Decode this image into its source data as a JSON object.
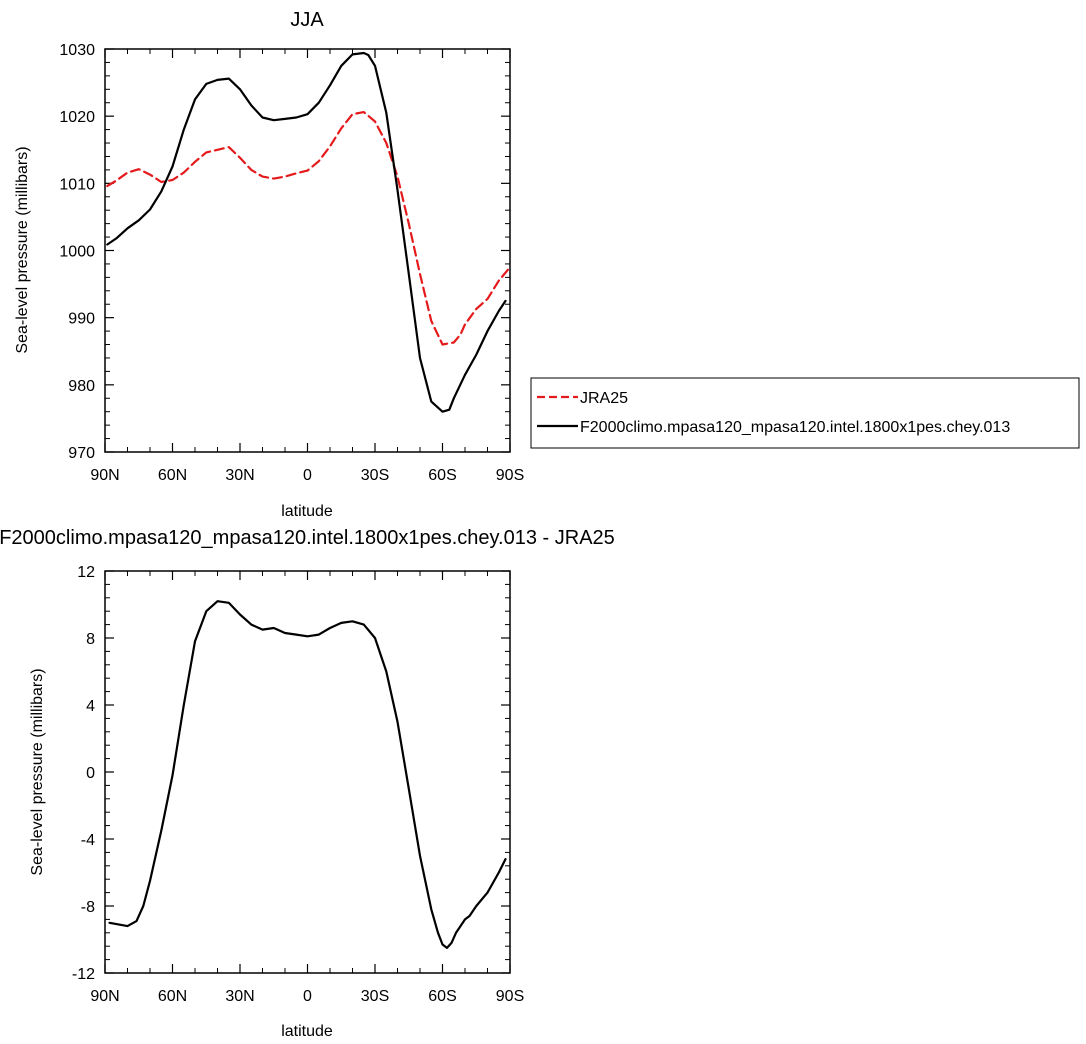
{
  "chart_data": [
    {
      "type": "line",
      "title": "JJA",
      "xlabel": "latitude",
      "ylabel": "Sea-level pressure (millibars)",
      "xlim": [
        90,
        -90
      ],
      "ylim": [
        970,
        1030
      ],
      "xticks": [
        {
          "value": 90,
          "label": "90N"
        },
        {
          "value": 60,
          "label": "60N"
        },
        {
          "value": 30,
          "label": "30N"
        },
        {
          "value": 0,
          "label": "0"
        },
        {
          "value": -30,
          "label": "30S"
        },
        {
          "value": -60,
          "label": "60S"
        },
        {
          "value": -90,
          "label": "90S"
        }
      ],
      "yticks": [
        {
          "value": 1030,
          "label": "1030"
        },
        {
          "value": 1020,
          "label": "1020"
        },
        {
          "value": 1010,
          "label": "1010"
        },
        {
          "value": 1000,
          "label": "1000"
        },
        {
          "value": 990,
          "label": "990"
        },
        {
          "value": 980,
          "label": "980"
        },
        {
          "value": 970,
          "label": "970"
        }
      ],
      "legend_position": "right",
      "series": [
        {
          "name": "JRA25",
          "color": "#e41a1c",
          "dash": "dashed",
          "x": [
            89,
            85,
            80,
            75,
            70,
            65,
            60,
            55,
            50,
            45,
            40,
            35,
            30,
            25,
            20,
            15,
            10,
            5,
            0,
            -5,
            -10,
            -15,
            -20,
            -25,
            -30,
            -35,
            -40,
            -45,
            -50,
            -55,
            -60,
            -65,
            -68,
            -70,
            -75,
            -80,
            -85,
            -90
          ],
          "y": [
            1009.6,
            1010.4,
            1011.6,
            1012.1,
            1011.3,
            1010.2,
            1010.5,
            1011.6,
            1013.2,
            1014.6,
            1015.0,
            1015.4,
            1013.8,
            1012.0,
            1011.0,
            1010.7,
            1011.0,
            1011.5,
            1011.9,
            1013.3,
            1015.5,
            1018.2,
            1020.3,
            1020.6,
            1019.2,
            1016.0,
            1011.0,
            1004.0,
            996.5,
            989.5,
            986.0,
            986.3,
            987.5,
            989.0,
            991.3,
            992.8,
            995.5,
            997.5
          ]
        },
        {
          "name": "F2000climo.mpasa120_mpasa120.intel.1800x1pes.chey.013",
          "color": "#000000",
          "dash": "solid",
          "x": [
            89,
            85,
            80,
            75,
            70,
            65,
            60,
            55,
            50,
            45,
            40,
            35,
            30,
            25,
            20,
            15,
            10,
            5,
            0,
            -5,
            -10,
            -15,
            -20,
            -25,
            -27,
            -30,
            -35,
            -40,
            -45,
            -50,
            -55,
            -60,
            -63,
            -65,
            -70,
            -75,
            -80,
            -85,
            -88
          ],
          "y": [
            1000.9,
            1001.8,
            1003.3,
            1004.5,
            1006.1,
            1008.8,
            1012.5,
            1018.0,
            1022.5,
            1024.8,
            1025.4,
            1025.6,
            1024.0,
            1021.6,
            1019.8,
            1019.4,
            1019.6,
            1019.8,
            1020.3,
            1022.0,
            1024.6,
            1027.5,
            1029.2,
            1029.4,
            1029.1,
            1027.5,
            1020.5,
            1009.0,
            996.5,
            984.0,
            977.5,
            976.0,
            976.3,
            978.0,
            981.5,
            984.5,
            988.0,
            991.0,
            992.5
          ]
        }
      ]
    },
    {
      "type": "line",
      "title": "F2000climo.mpasa120_mpasa120.intel.1800x1pes.chey.013 - JRA25",
      "xlabel": "latitude",
      "ylabel": "Sea-level pressure (millibars)",
      "xlim": [
        90,
        -90
      ],
      "ylim": [
        -12,
        12
      ],
      "xticks": [
        {
          "value": 90,
          "label": "90N"
        },
        {
          "value": 60,
          "label": "60N"
        },
        {
          "value": 30,
          "label": "30N"
        },
        {
          "value": 0,
          "label": "0"
        },
        {
          "value": -30,
          "label": "30S"
        },
        {
          "value": -60,
          "label": "60S"
        },
        {
          "value": -90,
          "label": "90S"
        }
      ],
      "yticks": [
        {
          "value": 12,
          "label": "12"
        },
        {
          "value": 8,
          "label": "8"
        },
        {
          "value": 4,
          "label": "4"
        },
        {
          "value": 0,
          "label": "0"
        },
        {
          "value": -4,
          "label": "-4"
        },
        {
          "value": -8,
          "label": "-8"
        },
        {
          "value": -12,
          "label": "-12"
        }
      ],
      "series": [
        {
          "color": "#000000",
          "dash": "solid",
          "x": [
            88,
            84,
            80,
            76,
            73,
            70,
            65,
            60,
            55,
            50,
            45,
            40,
            35,
            30,
            25,
            20,
            15,
            10,
            5,
            0,
            -5,
            -10,
            -15,
            -20,
            -25,
            -30,
            -35,
            -40,
            -45,
            -50,
            -55,
            -58,
            -60,
            -62,
            -64,
            -66,
            -68,
            -70,
            -72,
            -75,
            -80,
            -85,
            -88
          ],
          "y": [
            -9.0,
            -9.1,
            -9.2,
            -8.9,
            -8.0,
            -6.5,
            -3.5,
            -0.2,
            4.0,
            7.8,
            9.6,
            10.2,
            10.1,
            9.4,
            8.8,
            8.5,
            8.6,
            8.3,
            8.2,
            8.1,
            8.2,
            8.6,
            8.9,
            9.0,
            8.8,
            8.0,
            6.0,
            3.0,
            -1.0,
            -5.0,
            -8.2,
            -9.6,
            -10.3,
            -10.5,
            -10.2,
            -9.6,
            -9.2,
            -8.8,
            -8.6,
            -8.0,
            -7.2,
            -6.0,
            -5.2
          ]
        }
      ]
    }
  ]
}
